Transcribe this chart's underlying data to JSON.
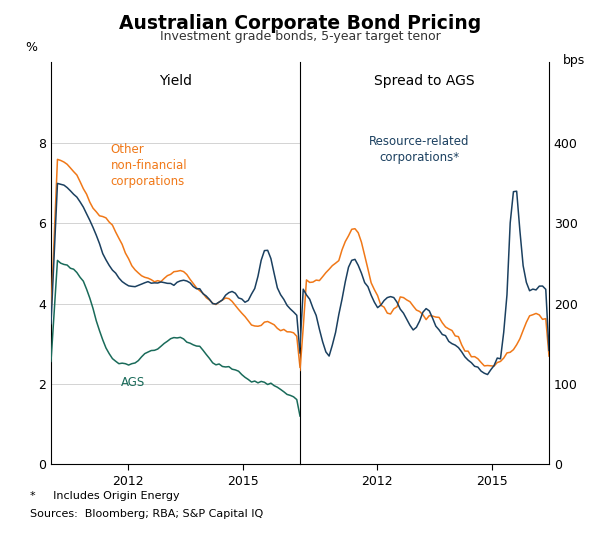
{
  "title": "Australian Corporate Bond Pricing",
  "subtitle": "Investment grade bonds, 5-year target tenor",
  "left_panel_label": "Yield",
  "right_panel_label": "Spread to AGS",
  "left_ylabel": "%",
  "right_ylabel": "bps",
  "left_ylim": [
    0,
    10
  ],
  "right_ylim": [
    0,
    500
  ],
  "left_yticks": [
    0,
    2,
    4,
    6,
    8
  ],
  "right_yticks": [
    0,
    100,
    200,
    300,
    400
  ],
  "color_orange": "#F07818",
  "color_navy": "#1B4060",
  "color_teal": "#1A6B5A",
  "footnote1": "*     Includes Origin Energy",
  "footnote2": "Sources:  Bloomberg; RBA; S&P Capital IQ",
  "background_color": "#ffffff",
  "grid_color": "#cccccc"
}
